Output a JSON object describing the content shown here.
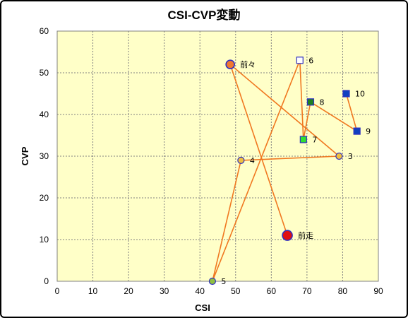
{
  "chart_data": {
    "type": "scatter",
    "title": "CSI-CVP変動",
    "xlabel": "CSI",
    "ylabel": "CVP",
    "xlim": [
      0,
      90
    ],
    "ylim": [
      0,
      60
    ],
    "xticks": [
      "0",
      "10",
      "20",
      "30",
      "40",
      "50",
      "60",
      "70",
      "80",
      "90"
    ],
    "yticks": [
      "0",
      "10",
      "20",
      "30",
      "40",
      "50",
      "60"
    ],
    "grid": true,
    "colors": {
      "plot_bg": "#FFFFC8",
      "grid": "#808080",
      "line": "#F07820",
      "point_stroke": "#3030C0"
    },
    "points": [
      {
        "label": "前走",
        "x": 64.5,
        "y": 11,
        "shape": "circle",
        "size": 7,
        "fill": "#E01010"
      },
      {
        "label": "前々",
        "x": 48.5,
        "y": 52,
        "shape": "circle",
        "size": 6,
        "fill": "#F07830"
      },
      {
        "label": "3",
        "x": 79,
        "y": 30,
        "shape": "circle",
        "size": 4.5,
        "fill": "#F0C040"
      },
      {
        "label": "4",
        "x": 51.5,
        "y": 29,
        "shape": "circle",
        "size": 4.5,
        "fill": "#F0C040"
      },
      {
        "label": "5",
        "x": 43.5,
        "y": 0,
        "shape": "circle",
        "size": 4.5,
        "fill": "#90C040"
      },
      {
        "label": "6",
        "x": 68,
        "y": 53,
        "shape": "square",
        "size": 4.5,
        "fill": "#FFFFFF"
      },
      {
        "label": "7",
        "x": 69,
        "y": 34,
        "shape": "square",
        "size": 4.5,
        "fill": "#30E030"
      },
      {
        "label": "8",
        "x": 71,
        "y": 43,
        "shape": "square",
        "size": 4.5,
        "fill": "#208020"
      },
      {
        "label": "9",
        "x": 84,
        "y": 36,
        "shape": "square",
        "size": 4.5,
        "fill": "#1040C0"
      },
      {
        "label": "10",
        "x": 81,
        "y": 45,
        "shape": "square",
        "size": 4.5,
        "fill": "#1040C0"
      }
    ]
  }
}
